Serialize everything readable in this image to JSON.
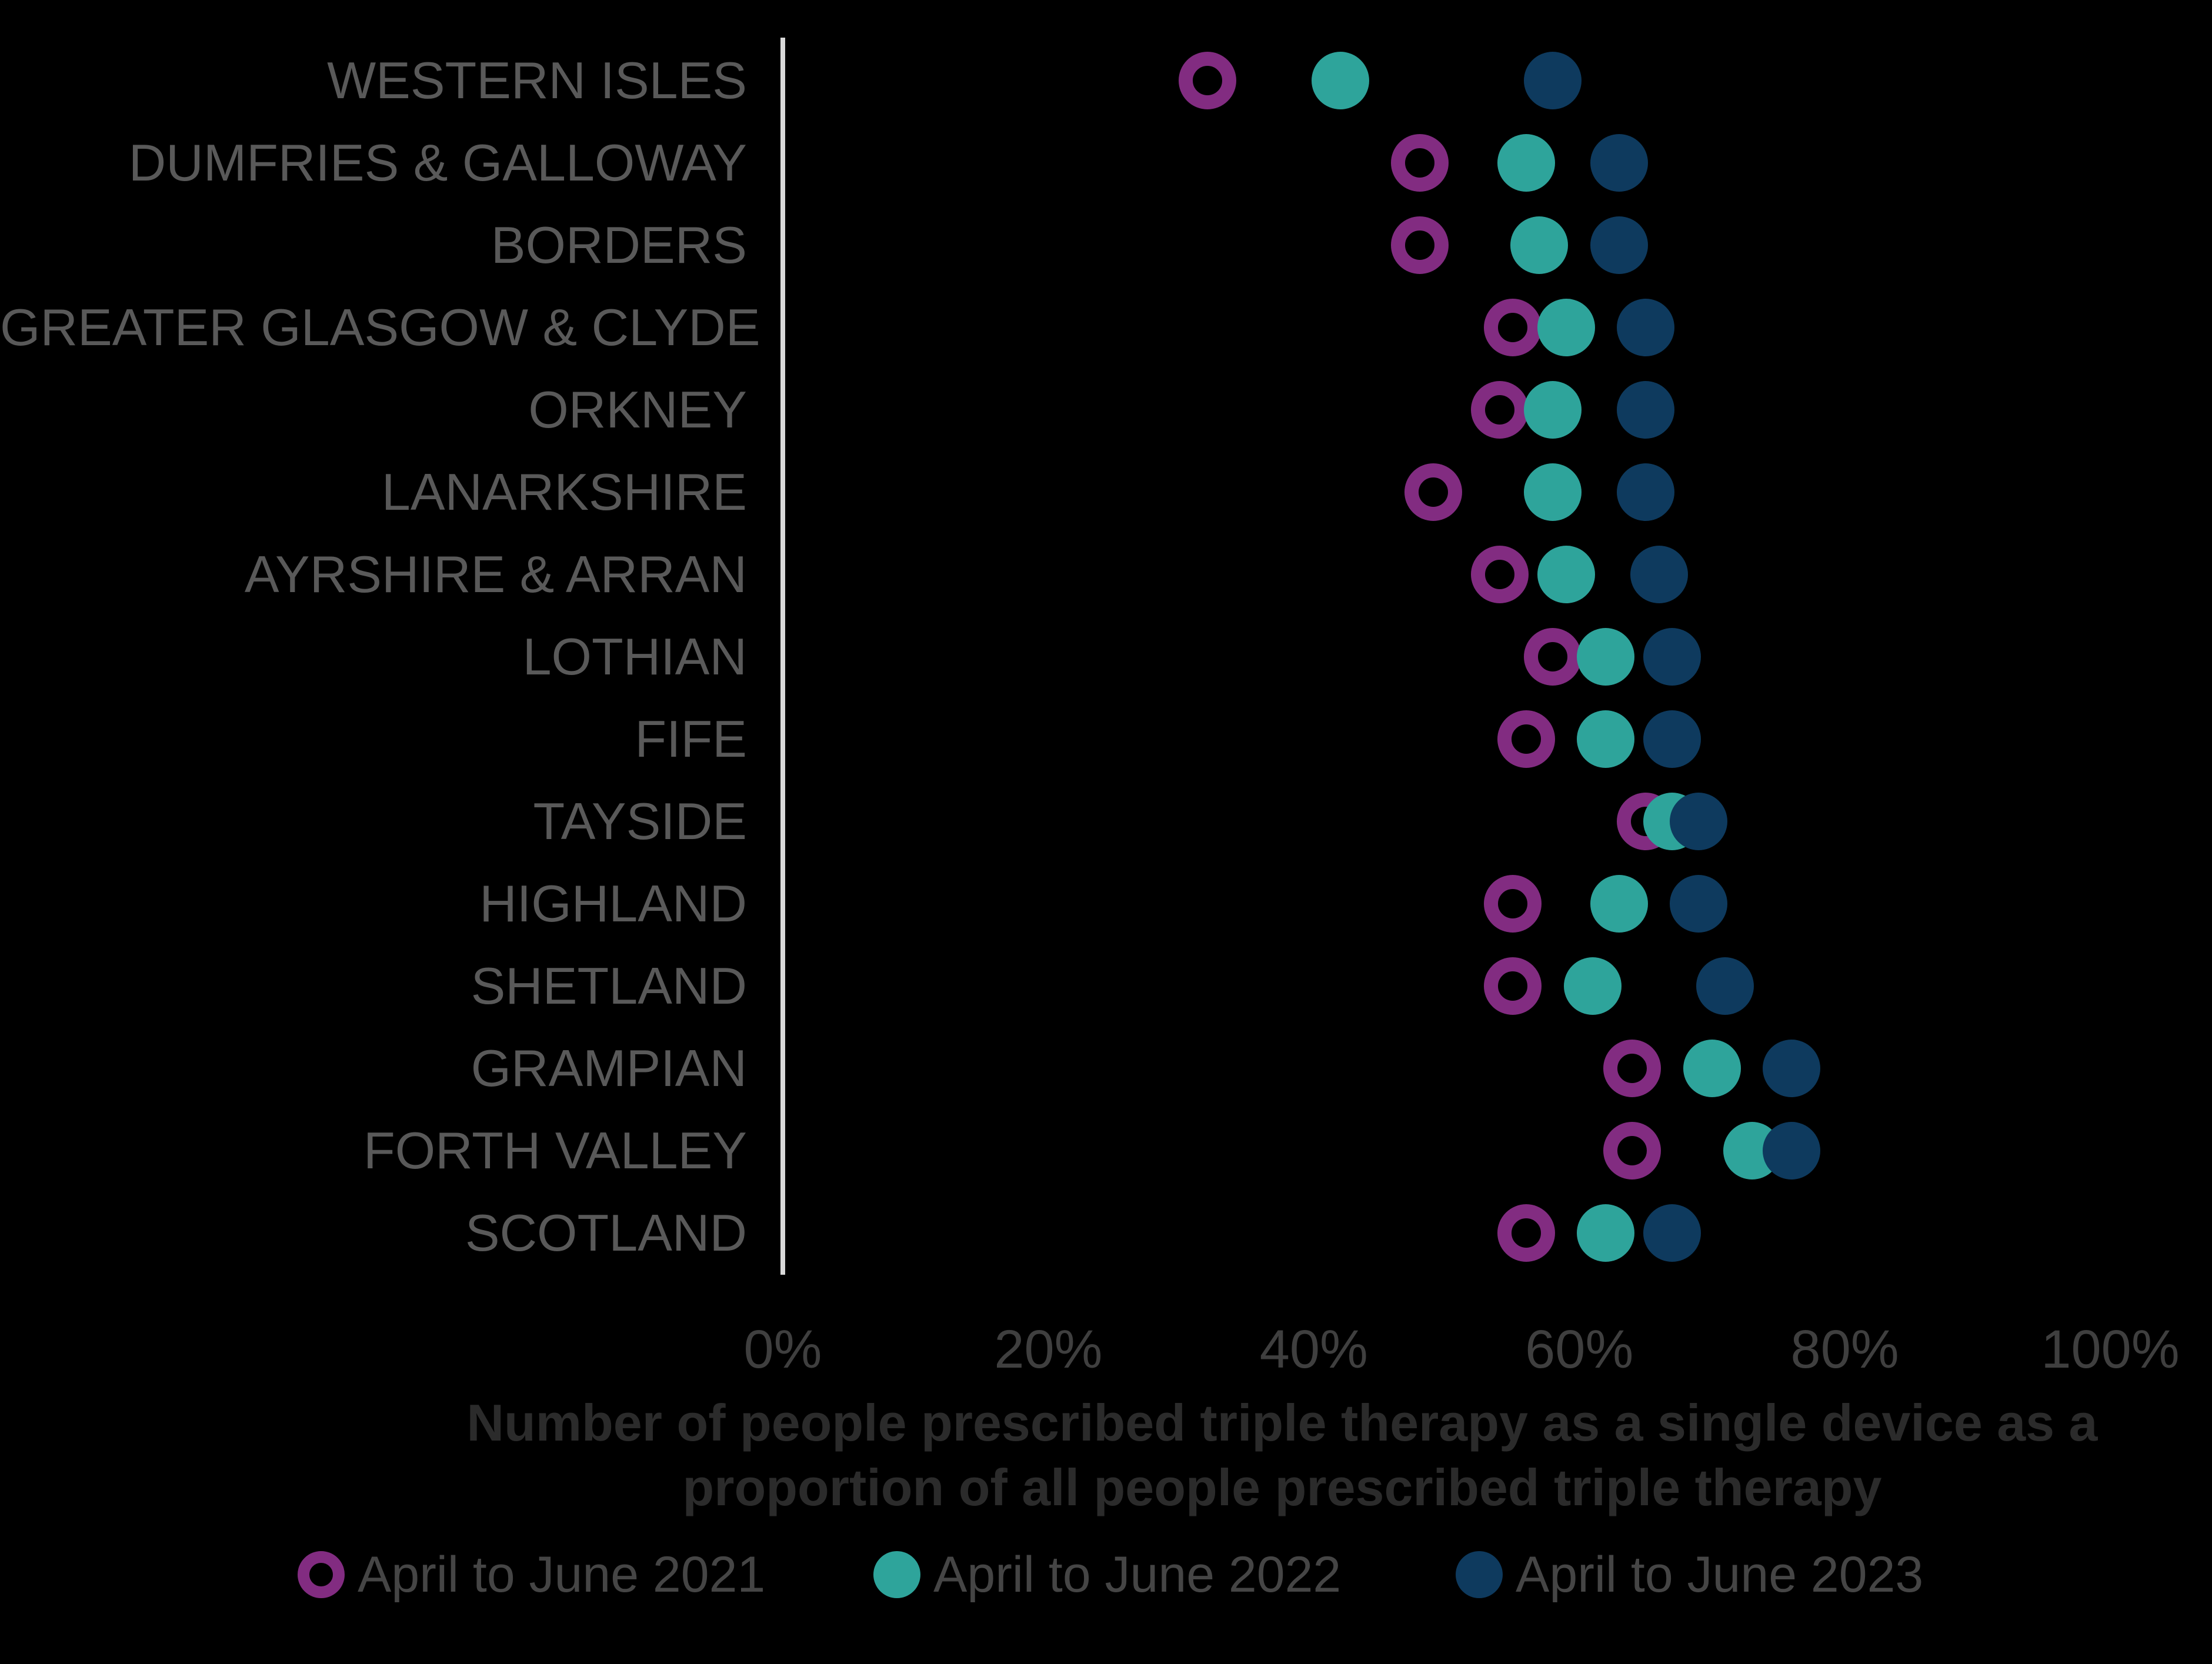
{
  "chart_data": {
    "type": "scatter",
    "subtype": "horizontal-dot-plot",
    "categories": [
      "WESTERN ISLES",
      "DUMFRIES & GALLOWAY",
      "BORDERS",
      "GREATER GLASGOW & CLYDE",
      "ORKNEY",
      "LANARKSHIRE",
      "AYRSHIRE & ARRAN",
      "LOTHIAN",
      "FIFE",
      "TAYSIDE",
      "HIGHLAND",
      "SHETLAND",
      "GRAMPIAN",
      "FORTH VALLEY",
      "SCOTLAND"
    ],
    "series": [
      {
        "name": "April to June 2021",
        "marker": "open-circle",
        "color": "#822C81",
        "values": [
          32,
          48,
          48,
          55,
          54,
          49,
          54,
          58,
          56,
          65,
          55,
          55,
          64,
          64,
          56
        ]
      },
      {
        "name": "April to June 2022",
        "marker": "filled-circle",
        "color": "#2EA49B",
        "values": [
          42,
          56,
          57,
          59,
          58,
          58,
          59,
          62,
          62,
          67,
          63,
          61,
          70,
          73,
          62
        ]
      },
      {
        "name": "April to June 2023",
        "marker": "filled-circle",
        "color": "#0E3A5E",
        "values": [
          58,
          63,
          63,
          65,
          65,
          65,
          66,
          67,
          67,
          69,
          69,
          71,
          76,
          76,
          67
        ]
      }
    ],
    "x_axis": {
      "min": 0,
      "max": 100,
      "unit": "%",
      "ticks": [
        "0%",
        "20%",
        "40%",
        "60%",
        "80%",
        "100%"
      ]
    },
    "axis_title_lines": [
      "Number of people prescribed triple therapy as a single device as a",
      "proportion of all people prescribed triple therapy"
    ],
    "legend_position": "bottom",
    "grid": "off"
  },
  "colors": {
    "background": "#000000",
    "axis_line": "#D9D9D9",
    "category_label": "#595959",
    "tick_label": "#3F3F3F",
    "axis_title": "#2B2B2B",
    "legend_label": "#454545"
  }
}
